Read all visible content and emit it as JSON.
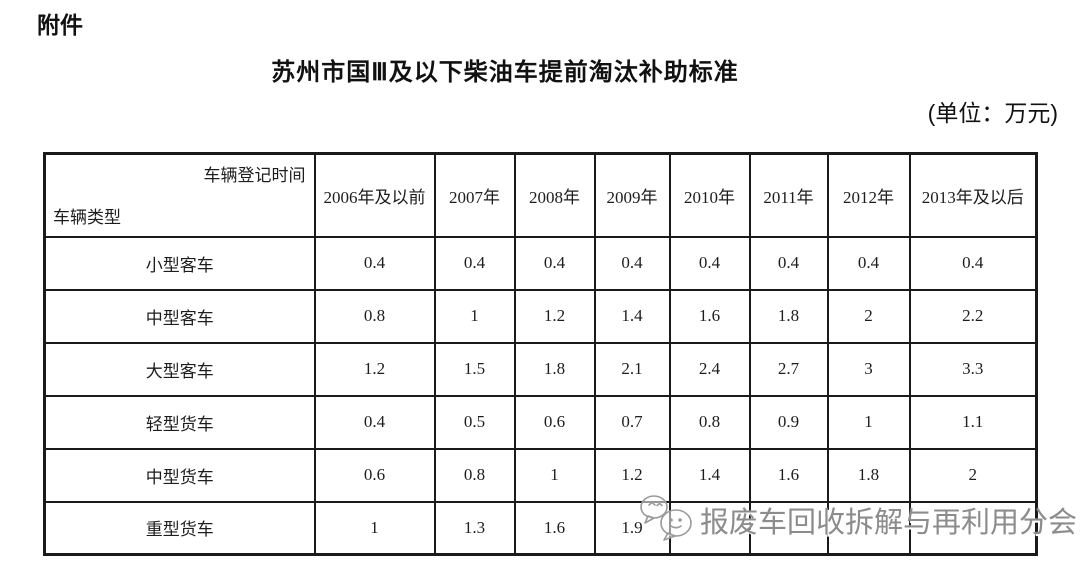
{
  "page": {
    "attachment_label": "附件",
    "title": "苏州市国Ⅲ及以下柴油车提前淘汰补助标准",
    "unit_note": "(单位：万元)"
  },
  "table": {
    "corner": {
      "top_right": "车辆登记时间",
      "bottom_left": "车辆类型"
    },
    "columns": [
      "2006年及以前",
      "2007年",
      "2008年",
      "2009年",
      "2010年",
      "2011年",
      "2012年",
      "2013年及以后"
    ],
    "rows": [
      {
        "label": "小型客车",
        "values": [
          "0.4",
          "0.4",
          "0.4",
          "0.4",
          "0.4",
          "0.4",
          "0.4",
          "0.4"
        ]
      },
      {
        "label": "中型客车",
        "values": [
          "0.8",
          "1",
          "1.2",
          "1.4",
          "1.6",
          "1.8",
          "2",
          "2.2"
        ]
      },
      {
        "label": "大型客车",
        "values": [
          "1.2",
          "1.5",
          "1.8",
          "2.1",
          "2.4",
          "2.7",
          "3",
          "3.3"
        ]
      },
      {
        "label": "轻型货车",
        "values": [
          "0.4",
          "0.5",
          "0.6",
          "0.7",
          "0.8",
          "0.9",
          "1",
          "1.1"
        ]
      },
      {
        "label": "中型货车",
        "values": [
          "0.6",
          "0.8",
          "1",
          "1.2",
          "1.4",
          "1.6",
          "1.8",
          "2"
        ]
      },
      {
        "label": "重型货车",
        "values": [
          "1",
          "1.3",
          "1.6",
          "1.9",
          "",
          "",
          "",
          ""
        ]
      }
    ]
  },
  "watermark": {
    "text": "报废车回收拆解与再利用分会",
    "logo": "wechat-bubbles-icon",
    "color": "#8c8c8c"
  }
}
